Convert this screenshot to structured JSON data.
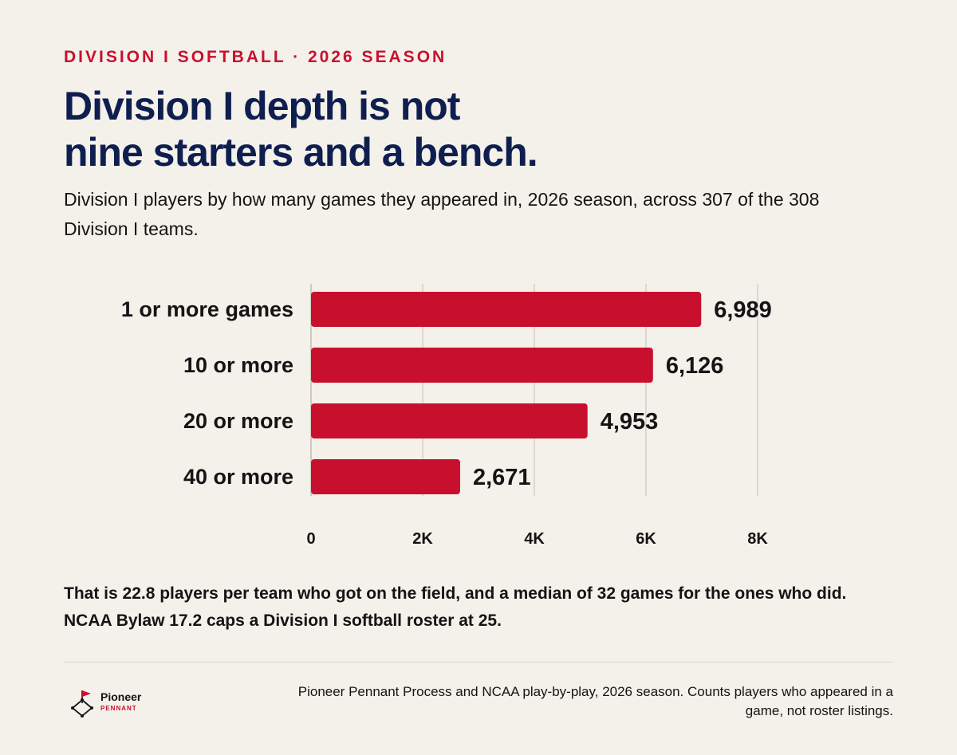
{
  "header": {
    "kicker": "DIVISION I SOFTBALL · 2026 SEASON",
    "title_line1": "Division I depth is not",
    "title_line2": "nine starters and a bench.",
    "subtitle": "Division I players by how many games they appeared in, 2026 season, across 307 of the 308 Division I teams."
  },
  "chart_data": {
    "type": "bar",
    "orientation": "horizontal",
    "categories": [
      "1 or more games",
      "10 or more",
      "20 or more",
      "40 or more"
    ],
    "values": [
      6989,
      6126,
      4953,
      2671
    ],
    "value_labels": [
      "6,989",
      "6,126",
      "4,953",
      "2,671"
    ],
    "xlim": [
      0,
      8000
    ],
    "ticks": [
      0,
      2000,
      4000,
      6000,
      8000
    ],
    "tick_labels": [
      "0",
      "2K",
      "4K",
      "6K",
      "8K"
    ],
    "grid": true,
    "bar_color": "#c8102e",
    "title": "",
    "xlabel": "",
    "ylabel": ""
  },
  "footer": {
    "takeaway": "That is 22.8 players per team who got on the field, and a median of 32 games for the ones who did. NCAA Bylaw 17.2 caps a Division I softball roster at 25.",
    "source": "Pioneer Pennant Process and NCAA play-by-play, 2026 season. Counts players who appeared in a game, not roster listings.",
    "brand_name": "Pioneer",
    "brand_sub": "PENNANT"
  },
  "colors": {
    "accent": "#c8102e",
    "title": "#0e1f4f",
    "background": "#f4f0ea"
  }
}
